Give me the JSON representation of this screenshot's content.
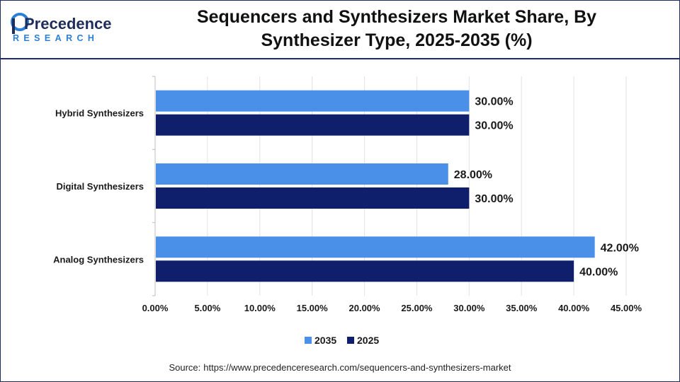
{
  "brand": {
    "logo_line1": "Precedence",
    "logo_line2": "RESEARCH",
    "colors": {
      "navy": "#1f2d5c",
      "blue": "#2b7fd6"
    }
  },
  "title_line1": "Sequencers and Synthesizers Market Share, By",
  "title_line2": "Synthesizer Type, 2025-2035 (%)",
  "source_label": "Source:",
  "source_url": "https://www.precedenceresearch.com/sequencers-and-synthesizers-market",
  "chart_data": {
    "type": "bar",
    "orientation": "horizontal",
    "categories": [
      "Hybrid Synthesizers",
      "Digital Synthesizers",
      "Analog Synthesizers"
    ],
    "series": [
      {
        "name": "2035",
        "color": "#4a90e8",
        "values": [
          30,
          28,
          42
        ],
        "labels": [
          "30.00%",
          "28.00%",
          "42.00%"
        ]
      },
      {
        "name": "2025",
        "color": "#0f1f6b",
        "values": [
          30,
          30,
          40
        ],
        "labels": [
          "30.00%",
          "30.00%",
          "40.00%"
        ]
      }
    ],
    "xlim": [
      0,
      45
    ],
    "xticks": [
      0,
      5,
      10,
      15,
      20,
      25,
      30,
      35,
      40,
      45
    ],
    "xtick_labels": [
      "0.00%",
      "5.00%",
      "10.00%",
      "15.00%",
      "20.00%",
      "25.00%",
      "30.00%",
      "35.00%",
      "40.00%",
      "45.00%"
    ],
    "grid": true,
    "legend_position": "bottom"
  }
}
